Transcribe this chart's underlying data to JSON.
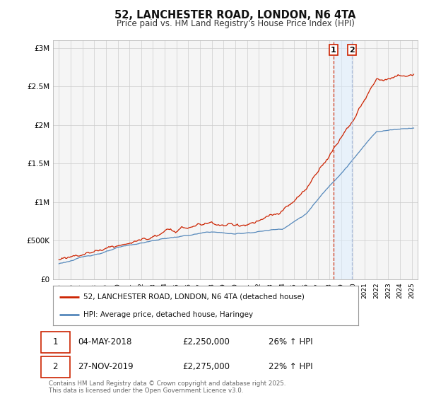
{
  "title": "52, LANCHESTER ROAD, LONDON, N6 4TA",
  "subtitle": "Price paid vs. HM Land Registry's House Price Index (HPI)",
  "ylabel_ticks": [
    "£0",
    "£500K",
    "£1M",
    "£1.5M",
    "£2M",
    "£2.5M",
    "£3M"
  ],
  "ylabel_values": [
    0,
    500000,
    1000000,
    1500000,
    2000000,
    2500000,
    3000000
  ],
  "ylim": [
    0,
    3100000
  ],
  "color_red": "#cc2200",
  "color_blue": "#5588bb",
  "color_vline1": "#cc2200",
  "color_vline2": "#aabbdd",
  "color_vshade": "#ddeeff",
  "legend_label_red": "52, LANCHESTER ROAD, LONDON, N6 4TA (detached house)",
  "legend_label_blue": "HPI: Average price, detached house, Haringey",
  "transaction1_label": "1",
  "transaction1_date": "04-MAY-2018",
  "transaction1_price": "£2,250,000",
  "transaction1_hpi": "26% ↑ HPI",
  "transaction2_label": "2",
  "transaction2_date": "27-NOV-2019",
  "transaction2_price": "£2,275,000",
  "transaction2_hpi": "22% ↑ HPI",
  "footer": "Contains HM Land Registry data © Crown copyright and database right 2025.\nThis data is licensed under the Open Government Licence v3.0.",
  "vline1_x": 2018.34,
  "vline2_x": 2019.91,
  "xlim_left": 1994.5,
  "xlim_right": 2025.5,
  "bg_color": "#ffffff",
  "plot_bg_color": "#f5f5f5"
}
